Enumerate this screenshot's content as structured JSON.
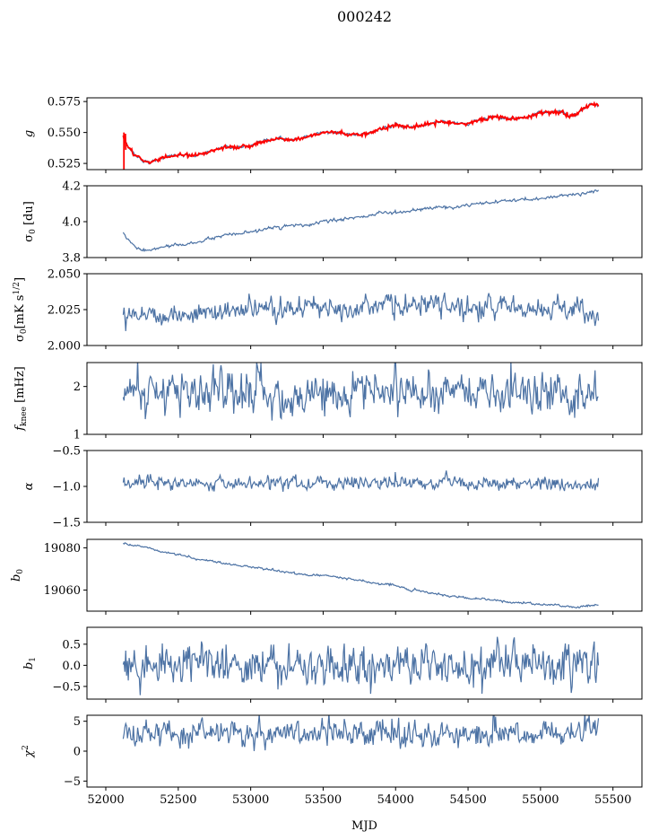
{
  "figure": {
    "title": "000242",
    "xlabel": "MJD",
    "xticks": [
      52000,
      52500,
      53000,
      53500,
      54000,
      54500,
      55000,
      55500
    ],
    "xlim": [
      51870,
      55700
    ],
    "line_color": "#4c72a4",
    "highlight_color": "#ff0000"
  },
  "chart_data": [
    {
      "type": "line",
      "ylabel": "g",
      "ylim": [
        0.52,
        0.578
      ],
      "yticks": [
        0.525,
        0.55,
        0.575
      ],
      "ytick_labels": [
        "0.525",
        "0.550",
        "0.575"
      ],
      "noise": 0.0006,
      "overlay": {
        "color": "#ff0000",
        "noise": 0.0008
      },
      "series": [
        {
          "x": [
            52120,
            52140,
            52200,
            52260,
            52300,
            52400,
            52500,
            52600,
            52700,
            52800,
            52900,
            53000,
            53100,
            53200,
            53300,
            53400,
            53500,
            53600,
            53700,
            53800,
            53900,
            54000,
            54100,
            54200,
            54300,
            54400,
            54500,
            54600,
            54700,
            54800,
            54900,
            55000,
            55100,
            55150,
            55200,
            55250,
            55300,
            55350,
            55400
          ],
          "y": [
            0.547,
            0.541,
            0.532,
            0.527,
            0.526,
            0.53,
            0.532,
            0.531,
            0.534,
            0.538,
            0.538,
            0.539,
            0.543,
            0.545,
            0.544,
            0.547,
            0.55,
            0.55,
            0.548,
            0.549,
            0.553,
            0.556,
            0.554,
            0.556,
            0.559,
            0.558,
            0.557,
            0.561,
            0.563,
            0.561,
            0.562,
            0.566,
            0.566,
            0.567,
            0.563,
            0.565,
            0.57,
            0.573,
            0.572
          ]
        }
      ]
    },
    {
      "type": "line",
      "ylabel": "σ0 [du]",
      "ylim": [
        3.8,
        4.2
      ],
      "yticks": [
        3.8,
        4.0,
        4.2
      ],
      "ytick_labels": [
        "3.8",
        "4.0",
        "4.2"
      ],
      "noise": 0.004,
      "series": [
        {
          "x": [
            52120,
            52150,
            52200,
            52250,
            52300,
            52400,
            52500,
            52600,
            52700,
            52800,
            52900,
            53000,
            53100,
            53200,
            53300,
            53400,
            53500,
            53600,
            53700,
            53800,
            53900,
            54000,
            54100,
            54200,
            54300,
            54400,
            54500,
            54600,
            54700,
            54800,
            54900,
            55000,
            55100,
            55200,
            55300,
            55400
          ],
          "y": [
            3.94,
            3.9,
            3.86,
            3.84,
            3.84,
            3.86,
            3.87,
            3.88,
            3.9,
            3.92,
            3.93,
            3.94,
            3.96,
            3.97,
            3.98,
            3.98,
            4.0,
            4.01,
            4.02,
            4.03,
            4.05,
            4.05,
            4.06,
            4.07,
            4.08,
            4.08,
            4.09,
            4.1,
            4.11,
            4.12,
            4.12,
            4.13,
            4.14,
            4.15,
            4.16,
            4.17
          ]
        }
      ]
    },
    {
      "type": "line",
      "ylabel": "σ0[mK s1/2]",
      "ylim": [
        2.0,
        2.05
      ],
      "yticks": [
        2.0,
        2.025,
        2.05
      ],
      "ytick_labels": [
        "2.000",
        "2.025",
        "2.050"
      ],
      "noise": 0.0035,
      "series": [
        {
          "x": [
            52120,
            52300,
            52500,
            52700,
            52900,
            53100,
            53300,
            53500,
            53700,
            53900,
            54100,
            54300,
            54500,
            54700,
            54900,
            55100,
            55300,
            55400
          ],
          "y": [
            2.024,
            2.022,
            2.021,
            2.023,
            2.024,
            2.025,
            2.026,
            2.027,
            2.028,
            2.028,
            2.027,
            2.028,
            2.027,
            2.026,
            2.027,
            2.026,
            2.024,
            2.021
          ]
        }
      ]
    },
    {
      "type": "line",
      "ylabel": "fknee [mHz]",
      "ylim": [
        1.0,
        2.5
      ],
      "yticks": [
        1,
        2
      ],
      "ytick_labels": [
        "1",
        "2"
      ],
      "noise": 0.22,
      "series": [
        {
          "x": [
            52120,
            53000,
            54000,
            55000,
            55400
          ],
          "y": [
            1.9,
            1.88,
            1.87,
            1.87,
            1.8
          ]
        }
      ]
    },
    {
      "type": "line",
      "ylabel": "α",
      "ylim": [
        -1.5,
        -0.5
      ],
      "yticks": [
        -1.5,
        -1.0,
        -0.5
      ],
      "ytick_labels": [
        "−1.5",
        "−1.0",
        "−0.5"
      ],
      "noise": 0.045,
      "series": [
        {
          "x": [
            52120,
            53000,
            54000,
            55000,
            55400
          ],
          "y": [
            -0.96,
            -0.96,
            -0.96,
            -0.96,
            -0.96
          ]
        }
      ]
    },
    {
      "type": "line",
      "ylabel": "b0",
      "ylim": [
        19050,
        19084
      ],
      "yticks": [
        19060,
        19080
      ],
      "ytick_labels": [
        "19060",
        "19080"
      ],
      "noise": 0.25,
      "series": [
        {
          "x": [
            52120,
            52200,
            52300,
            52400,
            52500,
            52600,
            52700,
            52800,
            52900,
            53000,
            53100,
            53200,
            53300,
            53400,
            53500,
            53600,
            53700,
            53800,
            53900,
            54000,
            54100,
            54200,
            54300,
            54400,
            54500,
            54600,
            54700,
            54800,
            54900,
            55000,
            55100,
            55200,
            55300,
            55400
          ],
          "y": [
            19082,
            19081,
            19080,
            19078,
            19077,
            19075,
            19074,
            19073,
            19072,
            19071,
            19070,
            19069,
            19068,
            19067,
            19067,
            19066,
            19065,
            19064,
            19063,
            19062,
            19060,
            19059,
            19058,
            19057,
            19056,
            19056,
            19055,
            19054,
            19054,
            19053,
            19053,
            19052,
            19052,
            19053
          ]
        }
      ]
    },
    {
      "type": "line",
      "ylabel": "b1",
      "ylim": [
        -0.8,
        0.9
      ],
      "yticks": [
        -0.5,
        0.0,
        0.5
      ],
      "ytick_labels": [
        "−0.5",
        "0.0",
        "0.5"
      ],
      "noise": 0.24,
      "series": [
        {
          "x": [
            52120,
            53000,
            54000,
            55000,
            55400
          ],
          "y": [
            0.0,
            0.0,
            0.0,
            0.0,
            0.0
          ]
        }
      ]
    },
    {
      "type": "line",
      "ylabel": "χ2",
      "ylim": [
        -6,
        6
      ],
      "yticks": [
        -5,
        0,
        5
      ],
      "ytick_labels": [
        "−5",
        "0",
        "5"
      ],
      "noise": 1.0,
      "series": [
        {
          "x": [
            52120,
            52400,
            52800,
            53200,
            53600,
            54000,
            54400,
            54800,
            55200,
            55400
          ],
          "y": [
            2.5,
            3.0,
            3.0,
            3.0,
            3.2,
            3.0,
            3.0,
            3.0,
            3.0,
            3.5
          ]
        }
      ]
    }
  ]
}
